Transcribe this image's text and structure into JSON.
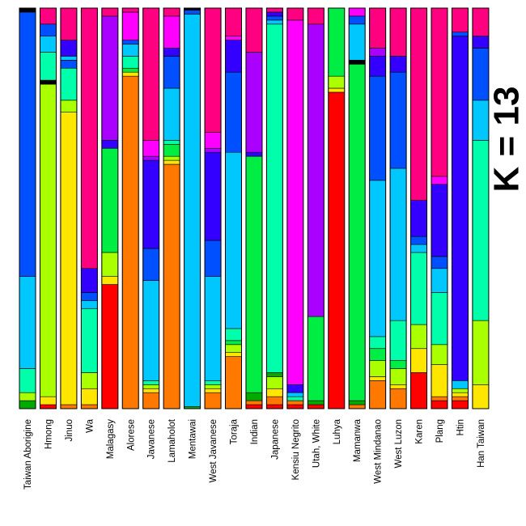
{
  "chart_data": {
    "type": "bar",
    "stacked": true,
    "orientation": "vertical",
    "title": "K = 13",
    "categories": [
      "Taiwan Aborigine",
      "Hmong",
      "Jinuo",
      "Wa",
      "Malagasy",
      "Alorese",
      "Javanese",
      "Lamaholot",
      "Mentawai",
      "West Javanese",
      "Toraja",
      "Indian",
      "Japanese",
      "Kensiu Negrito",
      "Utah, White",
      "Luhya",
      "Mamanwa",
      "West Mindanao",
      "West Luzon",
      "Karen",
      "Plang",
      "Htin",
      "Han Taiwan"
    ],
    "ylim": [
      0,
      1
    ],
    "bars": [
      {
        "category": "Taiwan Aborigine",
        "segments": [
          {
            "color": "#00aa00",
            "value": 0.02
          },
          {
            "color": "#aaff00",
            "value": 0.02
          },
          {
            "color": "#00ffaa",
            "value": 0.06
          },
          {
            "color": "#00c8ff",
            "value": 0.23
          },
          {
            "color": "#0050ff",
            "value": 0.66
          },
          {
            "color": "#000000",
            "value": 0.01
          }
        ]
      },
      {
        "category": "Hmong",
        "segments": [
          {
            "color": "#ff0000",
            "value": 0.01
          },
          {
            "color": "#ffe600",
            "value": 0.02
          },
          {
            "color": "#aaff00",
            "value": 0.78
          },
          {
            "color": "#000000",
            "value": 0.01
          },
          {
            "color": "#00ffaa",
            "value": 0.07
          },
          {
            "color": "#00c8ff",
            "value": 0.04
          },
          {
            "color": "#0050ff",
            "value": 0.03
          },
          {
            "color": "#ff0080",
            "value": 0.04
          }
        ]
      },
      {
        "category": "Jinuo",
        "segments": [
          {
            "color": "#ff7800",
            "value": 0.01
          },
          {
            "color": "#ffe600",
            "value": 0.73
          },
          {
            "color": "#aaff00",
            "value": 0.03
          },
          {
            "color": "#00ffaa",
            "value": 0.08
          },
          {
            "color": "#0050ff",
            "value": 0.02
          },
          {
            "color": "#00c8ff",
            "value": 0.01
          },
          {
            "color": "#3300ff",
            "value": 0.04
          },
          {
            "color": "#ff0080",
            "value": 0.08
          }
        ]
      },
      {
        "category": "Wa",
        "segments": [
          {
            "color": "#ff7800",
            "value": 0.01
          },
          {
            "color": "#ffe600",
            "value": 0.04
          },
          {
            "color": "#aaff00",
            "value": 0.04
          },
          {
            "color": "#00ffaa",
            "value": 0.16
          },
          {
            "color": "#00c8ff",
            "value": 0.02
          },
          {
            "color": "#0050ff",
            "value": 0.02
          },
          {
            "color": "#3300ff",
            "value": 0.06
          },
          {
            "color": "#ff0080",
            "value": 0.65
          }
        ]
      },
      {
        "category": "Malagasy",
        "segments": [
          {
            "color": "#ff0000",
            "value": 0.31
          },
          {
            "color": "#ffe600",
            "value": 0.02
          },
          {
            "color": "#aaff00",
            "value": 0.06
          },
          {
            "color": "#00ee44",
            "value": 0.26
          },
          {
            "color": "#3300ff",
            "value": 0.02
          },
          {
            "color": "#aa00ff",
            "value": 0.31
          },
          {
            "color": "#ff0080",
            "value": 0.02
          }
        ]
      },
      {
        "category": "Alorese",
        "segments": [
          {
            "color": "#ff7800",
            "value": 0.83
          },
          {
            "color": "#ffe600",
            "value": 0.01
          },
          {
            "color": "#00ee44",
            "value": 0.01
          },
          {
            "color": "#00ffaa",
            "value": 0.03
          },
          {
            "color": "#00c8ff",
            "value": 0.03
          },
          {
            "color": "#0050ff",
            "value": 0.01
          },
          {
            "color": "#ff00ff",
            "value": 0.07
          },
          {
            "color": "#ff0080",
            "value": 0.01
          }
        ]
      },
      {
        "category": "Javanese",
        "segments": [
          {
            "color": "#ff7800",
            "value": 0.04
          },
          {
            "color": "#ffe600",
            "value": 0.01
          },
          {
            "color": "#aaff00",
            "value": 0.01
          },
          {
            "color": "#00ffaa",
            "value": 0.01
          },
          {
            "color": "#00c8ff",
            "value": 0.25
          },
          {
            "color": "#0050ff",
            "value": 0.08
          },
          {
            "color": "#3300ff",
            "value": 0.22
          },
          {
            "color": "#aa00ff",
            "value": 0.01
          },
          {
            "color": "#ff00ff",
            "value": 0.04
          },
          {
            "color": "#ff0080",
            "value": 0.33
          }
        ]
      },
      {
        "category": "Lamaholot",
        "segments": [
          {
            "color": "#ff7800",
            "value": 0.61
          },
          {
            "color": "#ffe600",
            "value": 0.01
          },
          {
            "color": "#aaff00",
            "value": 0.01
          },
          {
            "color": "#00ee44",
            "value": 0.03
          },
          {
            "color": "#00ffaa",
            "value": 0.01
          },
          {
            "color": "#00c8ff",
            "value": 0.13
          },
          {
            "color": "#0050ff",
            "value": 0.08
          },
          {
            "color": "#3300ff",
            "value": 0.02
          },
          {
            "color": "#ff00ff",
            "value": 0.08
          },
          {
            "color": "#ff0080",
            "value": 0.02
          }
        ]
      },
      {
        "category": "Mentawai",
        "segments": [
          {
            "color": "#00aa00",
            "value": 0.005
          },
          {
            "color": "#00c8ff",
            "value": 0.98
          },
          {
            "color": "#0050ff",
            "value": 0.01
          },
          {
            "color": "#000000",
            "value": 0.005
          }
        ]
      },
      {
        "category": "West Javanese",
        "segments": [
          {
            "color": "#ff7800",
            "value": 0.04
          },
          {
            "color": "#ffe600",
            "value": 0.01
          },
          {
            "color": "#aaff00",
            "value": 0.01
          },
          {
            "color": "#00ffaa",
            "value": 0.01
          },
          {
            "color": "#00c8ff",
            "value": 0.26
          },
          {
            "color": "#0050ff",
            "value": 0.09
          },
          {
            "color": "#3300ff",
            "value": 0.22
          },
          {
            "color": "#aa00ff",
            "value": 0.01
          },
          {
            "color": "#ff00ff",
            "value": 0.04
          },
          {
            "color": "#ff0080",
            "value": 0.31
          }
        ]
      },
      {
        "category": "Toraja",
        "segments": [
          {
            "color": "#ff7800",
            "value": 0.13
          },
          {
            "color": "#ffe600",
            "value": 0.01
          },
          {
            "color": "#aaff00",
            "value": 0.02
          },
          {
            "color": "#00ee44",
            "value": 0.01
          },
          {
            "color": "#00ffaa",
            "value": 0.03
          },
          {
            "color": "#00c8ff",
            "value": 0.44
          },
          {
            "color": "#0050ff",
            "value": 0.2
          },
          {
            "color": "#3300ff",
            "value": 0.08
          },
          {
            "color": "#ff00ff",
            "value": 0.01
          },
          {
            "color": "#ff0080",
            "value": 0.07
          }
        ]
      },
      {
        "category": "Indian",
        "segments": [
          {
            "color": "#ff0000",
            "value": 0.01
          },
          {
            "color": "#ff7800",
            "value": 0.01
          },
          {
            "color": "#00aa00",
            "value": 0.02
          },
          {
            "color": "#00ee44",
            "value": 0.59
          },
          {
            "color": "#3300ff",
            "value": 0.01
          },
          {
            "color": "#aa00ff",
            "value": 0.25
          },
          {
            "color": "#ff0080",
            "value": 0.11
          }
        ]
      },
      {
        "category": "Japanese",
        "segments": [
          {
            "color": "#ff0000",
            "value": 0.01
          },
          {
            "color": "#ff7800",
            "value": 0.02
          },
          {
            "color": "#ffe600",
            "value": 0.02
          },
          {
            "color": "#aaff00",
            "value": 0.03
          },
          {
            "color": "#00aa00",
            "value": 0.01
          },
          {
            "color": "#00ffaa",
            "value": 0.87
          },
          {
            "color": "#00c8ff",
            "value": 0.01
          },
          {
            "color": "#0050ff",
            "value": 0.01
          },
          {
            "color": "#3300ff",
            "value": 0.01
          },
          {
            "color": "#ff0080",
            "value": 0.01
          }
        ]
      },
      {
        "category": "Kensiu Negrito",
        "segments": [
          {
            "color": "#ff0000",
            "value": 0.01
          },
          {
            "color": "#ff7800",
            "value": 0.01
          },
          {
            "color": "#00ffaa",
            "value": 0.01
          },
          {
            "color": "#00c8ff",
            "value": 0.01
          },
          {
            "color": "#3300ff",
            "value": 0.02
          },
          {
            "color": "#ff00ff",
            "value": 0.91
          },
          {
            "color": "#ff0080",
            "value": 0.03
          }
        ]
      },
      {
        "category": "Utah, White",
        "segments": [
          {
            "color": "#ff0000",
            "value": 0.01
          },
          {
            "color": "#00aa00",
            "value": 0.01
          },
          {
            "color": "#00ee44",
            "value": 0.21
          },
          {
            "color": "#aa00ff",
            "value": 0.73
          },
          {
            "color": "#ff0080",
            "value": 0.04
          }
        ]
      },
      {
        "category": "Luhya",
        "segments": [
          {
            "color": "#ff0000",
            "value": 0.79
          },
          {
            "color": "#ffe600",
            "value": 0.01
          },
          {
            "color": "#aaff00",
            "value": 0.03
          },
          {
            "color": "#00ee44",
            "value": 0.17
          }
        ]
      },
      {
        "category": "Mamanwa",
        "segments": [
          {
            "color": "#ff7800",
            "value": 0.01
          },
          {
            "color": "#00aa00",
            "value": 0.01
          },
          {
            "color": "#00ee44",
            "value": 0.84
          },
          {
            "color": "#000000",
            "value": 0.01
          },
          {
            "color": "#00c8ff",
            "value": 0.09
          },
          {
            "color": "#0050ff",
            "value": 0.02
          },
          {
            "color": "#ff00ff",
            "value": 0.02
          }
        ]
      },
      {
        "category": "West Mindanao",
        "segments": [
          {
            "color": "#ff7800",
            "value": 0.07
          },
          {
            "color": "#ffe600",
            "value": 0.01
          },
          {
            "color": "#aaff00",
            "value": 0.04
          },
          {
            "color": "#00ee44",
            "value": 0.03
          },
          {
            "color": "#00ffaa",
            "value": 0.03
          },
          {
            "color": "#00c8ff",
            "value": 0.39
          },
          {
            "color": "#0050ff",
            "value": 0.26
          },
          {
            "color": "#3300ff",
            "value": 0.05
          },
          {
            "color": "#aa00ff",
            "value": 0.02
          },
          {
            "color": "#ff0080",
            "value": 0.1
          }
        ]
      },
      {
        "category": "West Luzon",
        "segments": [
          {
            "color": "#ff7800",
            "value": 0.05
          },
          {
            "color": "#ffe600",
            "value": 0.01
          },
          {
            "color": "#aaff00",
            "value": 0.04
          },
          {
            "color": "#00ee44",
            "value": 0.02
          },
          {
            "color": "#00ffaa",
            "value": 0.1
          },
          {
            "color": "#00c8ff",
            "value": 0.38
          },
          {
            "color": "#0050ff",
            "value": 0.24
          },
          {
            "color": "#3300ff",
            "value": 0.04
          },
          {
            "color": "#ff0080",
            "value": 0.12
          }
        ]
      },
      {
        "category": "Karen",
        "segments": [
          {
            "color": "#ff0000",
            "value": 0.09
          },
          {
            "color": "#ffe600",
            "value": 0.06
          },
          {
            "color": "#aaff00",
            "value": 0.06
          },
          {
            "color": "#00ffaa",
            "value": 0.18
          },
          {
            "color": "#00c8ff",
            "value": 0.02
          },
          {
            "color": "#0050ff",
            "value": 0.02
          },
          {
            "color": "#3300ff",
            "value": 0.09
          },
          {
            "color": "#ff0080",
            "value": 0.48
          }
        ]
      },
      {
        "category": "Plang",
        "segments": [
          {
            "color": "#ff0000",
            "value": 0.02
          },
          {
            "color": "#ff7800",
            "value": 0.01
          },
          {
            "color": "#ffe600",
            "value": 0.08
          },
          {
            "color": "#aaff00",
            "value": 0.05
          },
          {
            "color": "#00ffaa",
            "value": 0.13
          },
          {
            "color": "#00c8ff",
            "value": 0.06
          },
          {
            "color": "#0050ff",
            "value": 0.03
          },
          {
            "color": "#3300ff",
            "value": 0.18
          },
          {
            "color": "#ff00ff",
            "value": 0.02
          },
          {
            "color": "#ff0080",
            "value": 0.42
          }
        ]
      },
      {
        "category": "Htin",
        "segments": [
          {
            "color": "#ff0000",
            "value": 0.02
          },
          {
            "color": "#ff7800",
            "value": 0.01
          },
          {
            "color": "#ffe600",
            "value": 0.01
          },
          {
            "color": "#aaff00",
            "value": 0.01
          },
          {
            "color": "#00c8ff",
            "value": 0.02
          },
          {
            "color": "#3300ff",
            "value": 0.86
          },
          {
            "color": "#0050ff",
            "value": 0.01
          },
          {
            "color": "#ff0080",
            "value": 0.06
          }
        ]
      },
      {
        "category": "Han Taiwan",
        "segments": [
          {
            "color": "#ffe600",
            "value": 0.06
          },
          {
            "color": "#aaff00",
            "value": 0.16
          },
          {
            "color": "#00ffaa",
            "value": 0.45
          },
          {
            "color": "#00c8ff",
            "value": 0.1
          },
          {
            "color": "#0050ff",
            "value": 0.13
          },
          {
            "color": "#3300ff",
            "value": 0.03
          },
          {
            "color": "#ff0080",
            "value": 0.07
          }
        ]
      }
    ]
  }
}
